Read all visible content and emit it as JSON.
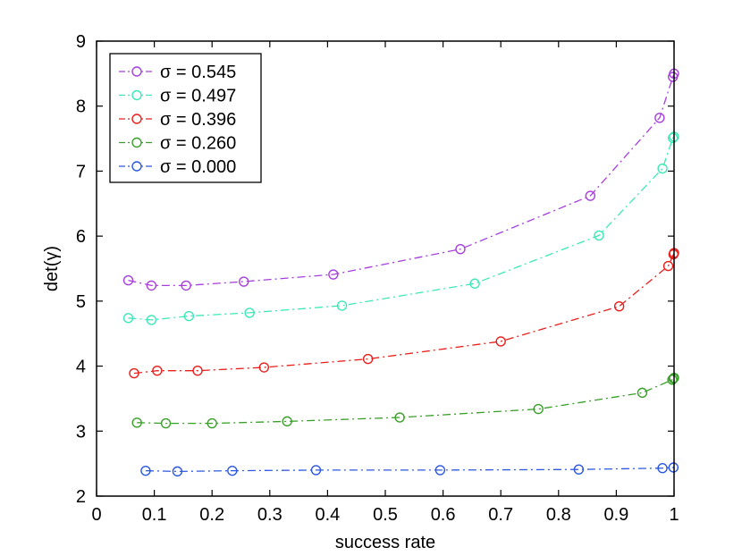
{
  "chart_data": {
    "type": "line",
    "title": "",
    "xlabel": "success rate",
    "ylabel": "det(γ)",
    "xlim": [
      0,
      1
    ],
    "ylim": [
      2,
      9
    ],
    "xticks": [
      0,
      0.1,
      0.2,
      0.3,
      0.4,
      0.5,
      0.6,
      0.7,
      0.8,
      0.9,
      1
    ],
    "xtick_labels": [
      "0",
      "0.1",
      "0.2",
      "0.3",
      "0.4",
      "0.5",
      "0.6",
      "0.7",
      "0.8",
      "0.9",
      "1"
    ],
    "yticks": [
      2,
      3,
      4,
      5,
      6,
      7,
      8,
      9
    ],
    "ytick_labels": [
      "2",
      "3",
      "4",
      "5",
      "6",
      "7",
      "8",
      "9"
    ],
    "grid": false,
    "legend_position": "top-left",
    "line_style": "dash-dot",
    "marker": "open-circle",
    "series": [
      {
        "name": "σ = 0.545",
        "color": "#a63fdc",
        "x": [
          0.055,
          0.095,
          0.155,
          0.255,
          0.41,
          0.63,
          0.855,
          0.975,
          0.998,
          1.0
        ],
        "y": [
          5.32,
          5.24,
          5.24,
          5.3,
          5.41,
          5.8,
          6.62,
          7.82,
          8.45,
          8.5
        ]
      },
      {
        "name": "σ = 0.497",
        "color": "#3de8b8",
        "x": [
          0.055,
          0.095,
          0.16,
          0.265,
          0.425,
          0.655,
          0.87,
          0.98,
          0.998,
          1.0
        ],
        "y": [
          4.74,
          4.71,
          4.77,
          4.82,
          4.93,
          5.27,
          6.01,
          7.04,
          7.51,
          7.53
        ]
      },
      {
        "name": "σ = 0.396",
        "color": "#e8201c",
        "x": [
          0.065,
          0.105,
          0.175,
          0.29,
          0.47,
          0.7,
          0.905,
          0.99,
          0.999,
          1.0
        ],
        "y": [
          3.89,
          3.93,
          3.93,
          3.98,
          4.11,
          4.38,
          4.92,
          5.54,
          5.72,
          5.74
        ]
      },
      {
        "name": "σ = 0.260",
        "color": "#3aa02a",
        "x": [
          0.07,
          0.12,
          0.2,
          0.33,
          0.525,
          0.765,
          0.945,
          0.997,
          0.999,
          1.0
        ],
        "y": [
          3.13,
          3.12,
          3.12,
          3.15,
          3.21,
          3.34,
          3.59,
          3.79,
          3.81,
          3.82
        ]
      },
      {
        "name": "σ = 0.000",
        "color": "#2c58e0",
        "x": [
          0.085,
          0.14,
          0.235,
          0.38,
          0.595,
          0.835,
          0.98,
          0.999
        ],
        "y": [
          2.39,
          2.38,
          2.39,
          2.4,
          2.4,
          2.41,
          2.43,
          2.44
        ]
      }
    ]
  }
}
